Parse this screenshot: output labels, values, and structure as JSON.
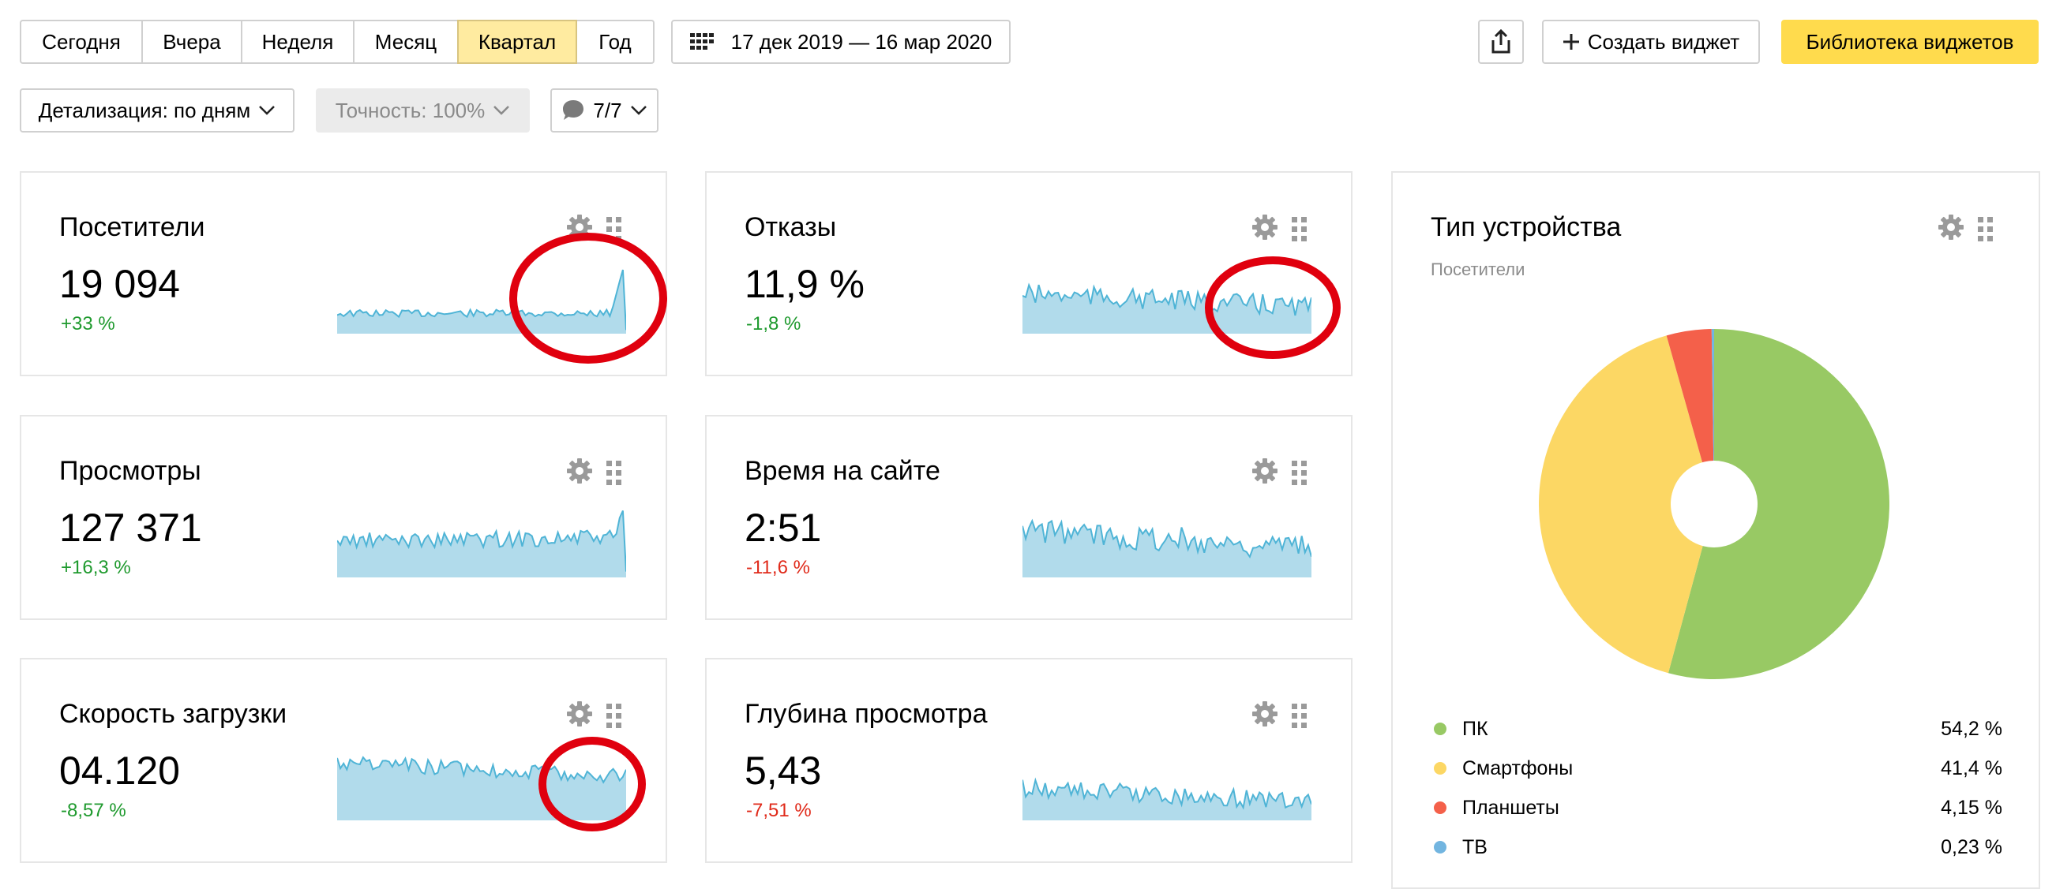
{
  "toolbar": {
    "periods": [
      {
        "label": "Сегодня",
        "active": false
      },
      {
        "label": "Вчера",
        "active": false
      },
      {
        "label": "Неделя",
        "active": false
      },
      {
        "label": "Месяц",
        "active": false
      },
      {
        "label": "Квартал",
        "active": true
      },
      {
        "label": "Год",
        "active": false
      }
    ],
    "date_range": "17 дек 2019 — 16 мар 2020",
    "create_widget": "Создать виджет",
    "widget_library": "Библиотека виджетов"
  },
  "filters": {
    "detail": "Детализация: по дням",
    "accuracy": "Точность: 100%",
    "segments": "7/7"
  },
  "widgets": {
    "visitors": {
      "title": "Посетители",
      "value": "19 094",
      "delta": "+33 %",
      "trend": "positive"
    },
    "bounces": {
      "title": "Отказы",
      "value": "11,9 %",
      "delta": "-1,8 %",
      "trend": "positive"
    },
    "pageviews": {
      "title": "Просмотры",
      "value": "127 371",
      "delta": "+16,3 %",
      "trend": "positive"
    },
    "time": {
      "title": "Время на сайте",
      "value": "2:51",
      "delta": "-11,6 %",
      "trend": "negative"
    },
    "speed": {
      "title": "Скорость загрузки",
      "value": "04.120",
      "delta": "-8,57 %",
      "trend": "positive"
    },
    "depth": {
      "title": "Глубина просмотра",
      "value": "5,43",
      "delta": "-7,51 %",
      "trend": "negative"
    }
  },
  "device": {
    "title": "Тип устройства",
    "subtitle": "Посетители",
    "items": [
      {
        "label": "ПК",
        "value": "54,2 %",
        "share": 54.2,
        "color": "#98c964"
      },
      {
        "label": "Смартфоны",
        "value": "41,4 %",
        "share": 41.4,
        "color": "#fcd764"
      },
      {
        "label": "Планшеты",
        "value": "4,15 %",
        "share": 4.15,
        "color": "#f4604a"
      },
      {
        "label": "ТВ",
        "value": "0,23 %",
        "share": 0.23,
        "color": "#72b5e0"
      }
    ]
  },
  "colors": {
    "accent_yellow": "#ffdb4d",
    "active_period": "#ffeba0",
    "sparkline_fill": "#b1dbeb",
    "sparkline_line": "#4fb4d6",
    "annotation_ring": "#e0000e",
    "positive": "#1f9a2e",
    "negative": "#e02a1a"
  }
}
